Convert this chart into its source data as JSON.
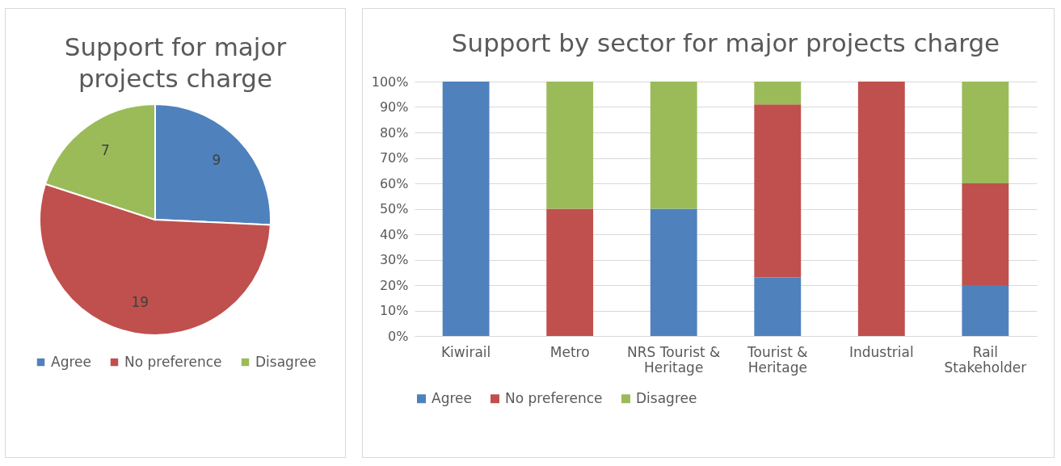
{
  "chart_data": [
    {
      "type": "pie",
      "title": "Support for major projects charge",
      "categories": [
        "Agree",
        "No preference",
        "Disagree"
      ],
      "values": [
        9,
        19,
        7
      ],
      "colors": [
        "#4f81bd",
        "#c0504d",
        "#9bbb59"
      ],
      "data_labels": true,
      "legend": "bottom"
    },
    {
      "type": "bar",
      "title": "Support by sector for major projects charge",
      "categories": [
        "Kiwirail",
        "Metro",
        "NRS Tourist & Heritage",
        "Tourist & Heritage",
        "Industrial",
        "Rail Stakeholder"
      ],
      "stacked": true,
      "series": [
        {
          "name": "Agree",
          "color": "#4f81bd",
          "values": [
            100,
            0,
            50,
            23,
            0,
            20
          ]
        },
        {
          "name": "No preference",
          "color": "#c0504d",
          "values": [
            0,
            50,
            0,
            68,
            100,
            40
          ]
        },
        {
          "name": "Disagree",
          "color": "#9bbb59",
          "values": [
            0,
            50,
            50,
            9,
            0,
            40
          ]
        }
      ],
      "ylim": [
        0,
        100
      ],
      "yticks": [
        {
          "value": 0,
          "label": "0%"
        },
        {
          "value": 10,
          "label": "10%"
        },
        {
          "value": 20,
          "label": "20%"
        },
        {
          "value": 30,
          "label": "30%"
        },
        {
          "value": 40,
          "label": "40%"
        },
        {
          "value": 50,
          "label": "50%"
        },
        {
          "value": 60,
          "label": "60%"
        },
        {
          "value": 70,
          "label": "70%"
        },
        {
          "value": 80,
          "label": "80%"
        },
        {
          "value": 90,
          "label": "90%"
        },
        {
          "value": 100,
          "label": "100%"
        }
      ],
      "grid": "y",
      "legend": "bottom"
    }
  ]
}
